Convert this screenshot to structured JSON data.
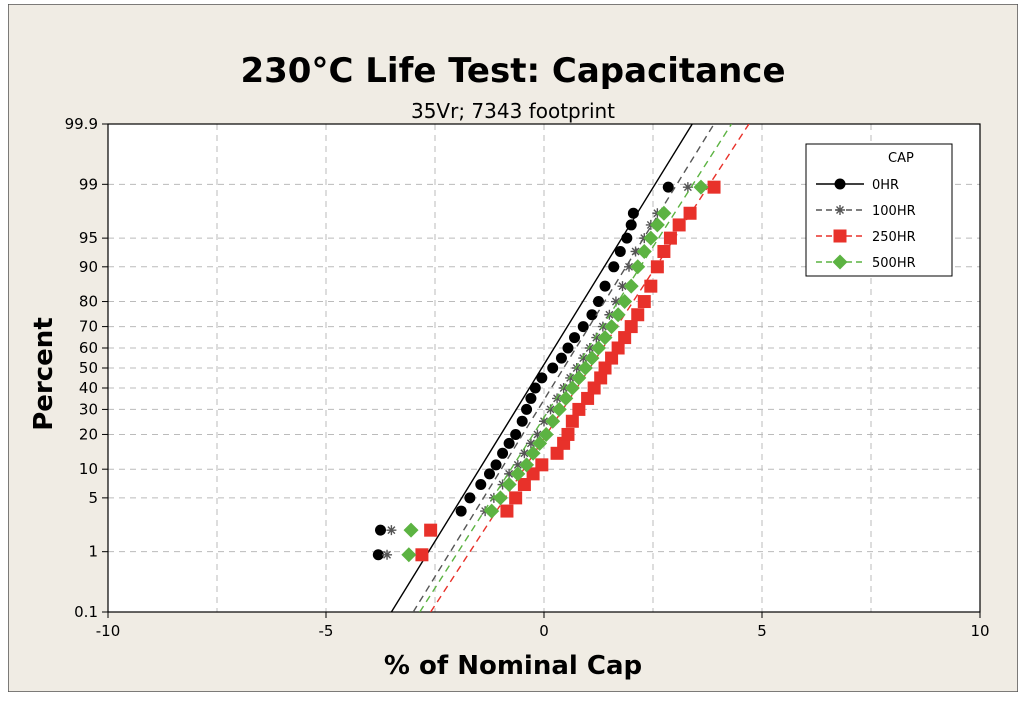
{
  "chart_data": {
    "type": "line",
    "title": "230°C Life Test: Capacitance",
    "subtitle": "35Vr; 7343 footprint",
    "xlabel": "% of Nominal Cap",
    "ylabel": "Percent",
    "xlim": [
      -10,
      10
    ],
    "ylim": [
      0.1,
      99.9
    ],
    "y_scale": "normal-probability",
    "xticks": [
      -10,
      -5,
      0,
      5,
      10
    ],
    "xtick_labels": [
      "-10",
      "-5",
      "0",
      "5",
      "10"
    ],
    "xgrid": [
      -10,
      -7.5,
      -5,
      -2.5,
      0,
      2.5,
      5,
      7.5,
      10
    ],
    "yticks": [
      0.1,
      1,
      5,
      10,
      20,
      30,
      40,
      50,
      60,
      70,
      80,
      90,
      95,
      99,
      99.9
    ],
    "ytick_labels": [
      "0.1",
      "1",
      "5",
      "10",
      "20",
      "30",
      "40",
      "50",
      "60",
      "70",
      "80",
      "90",
      "95",
      "99",
      "99.9"
    ],
    "grid": true,
    "background": "#f0ece4",
    "legend": {
      "title": "CAP",
      "placement": "top-right",
      "entries": [
        "0HR",
        "100HR",
        "250HR",
        "500HR"
      ]
    },
    "series": [
      {
        "name": "0HR",
        "color": "#000000",
        "marker": "circle",
        "line": "solid",
        "fit": [
          [
            -3.5,
            0.1
          ],
          [
            3.4,
            99.9
          ]
        ],
        "points": [
          [
            -3.8,
            0.9
          ],
          [
            -3.75,
            2
          ],
          [
            -1.9,
            3.5
          ],
          [
            -1.7,
            5
          ],
          [
            -1.45,
            7
          ],
          [
            -1.25,
            9
          ],
          [
            -1.1,
            11
          ],
          [
            -0.95,
            14
          ],
          [
            -0.8,
            17
          ],
          [
            -0.65,
            20
          ],
          [
            -0.5,
            25
          ],
          [
            -0.4,
            30
          ],
          [
            -0.3,
            35
          ],
          [
            -0.2,
            40
          ],
          [
            -0.05,
            45
          ],
          [
            0.2,
            50
          ],
          [
            0.4,
            55
          ],
          [
            0.55,
            60
          ],
          [
            0.7,
            65
          ],
          [
            0.9,
            70
          ],
          [
            1.1,
            75
          ],
          [
            1.25,
            80
          ],
          [
            1.4,
            85
          ],
          [
            1.6,
            90
          ],
          [
            1.75,
            93
          ],
          [
            1.9,
            95
          ],
          [
            2.0,
            96.5
          ],
          [
            2.05,
            97.5
          ],
          [
            2.85,
            98.9
          ]
        ]
      },
      {
        "name": "100HR",
        "color": "#555555",
        "marker": "star",
        "line": "dashed",
        "fit": [
          [
            -3.0,
            0.1
          ],
          [
            3.9,
            99.9
          ]
        ],
        "points": [
          [
            -3.6,
            0.9
          ],
          [
            -3.5,
            2
          ],
          [
            -1.35,
            3.5
          ],
          [
            -1.15,
            5
          ],
          [
            -0.95,
            7
          ],
          [
            -0.8,
            9
          ],
          [
            -0.6,
            11
          ],
          [
            -0.45,
            14
          ],
          [
            -0.3,
            17
          ],
          [
            -0.15,
            20
          ],
          [
            0.0,
            25
          ],
          [
            0.15,
            30
          ],
          [
            0.3,
            35
          ],
          [
            0.45,
            40
          ],
          [
            0.6,
            45
          ],
          [
            0.75,
            50
          ],
          [
            0.9,
            55
          ],
          [
            1.05,
            60
          ],
          [
            1.2,
            65
          ],
          [
            1.35,
            70
          ],
          [
            1.5,
            75
          ],
          [
            1.65,
            80
          ],
          [
            1.8,
            85
          ],
          [
            1.95,
            90
          ],
          [
            2.1,
            93
          ],
          [
            2.3,
            95
          ],
          [
            2.45,
            96.5
          ],
          [
            2.6,
            97.5
          ],
          [
            3.3,
            98.9
          ]
        ]
      },
      {
        "name": "250HR",
        "color": "#e8312a",
        "marker": "square",
        "line": "dashed",
        "fit": [
          [
            -2.6,
            0.1
          ],
          [
            4.7,
            99.9
          ]
        ],
        "points": [
          [
            -2.8,
            0.9
          ],
          [
            -2.6,
            2
          ],
          [
            -0.85,
            3.5
          ],
          [
            -0.65,
            5
          ],
          [
            -0.45,
            7
          ],
          [
            -0.25,
            9
          ],
          [
            -0.05,
            11
          ],
          [
            0.3,
            14
          ],
          [
            0.45,
            17
          ],
          [
            0.55,
            20
          ],
          [
            0.65,
            25
          ],
          [
            0.8,
            30
          ],
          [
            1.0,
            35
          ],
          [
            1.15,
            40
          ],
          [
            1.3,
            45
          ],
          [
            1.4,
            50
          ],
          [
            1.55,
            55
          ],
          [
            1.7,
            60
          ],
          [
            1.85,
            65
          ],
          [
            2.0,
            70
          ],
          [
            2.15,
            75
          ],
          [
            2.3,
            80
          ],
          [
            2.45,
            85
          ],
          [
            2.6,
            90
          ],
          [
            2.75,
            93
          ],
          [
            2.9,
            95
          ],
          [
            3.1,
            96.5
          ],
          [
            3.35,
            97.5
          ],
          [
            3.9,
            98.9
          ]
        ]
      },
      {
        "name": "500HR",
        "color": "#5cb342",
        "marker": "diamond",
        "line": "dashed",
        "fit": [
          [
            -2.85,
            0.1
          ],
          [
            4.3,
            99.9
          ]
        ],
        "points": [
          [
            -3.1,
            0.9
          ],
          [
            -3.05,
            2
          ],
          [
            -1.2,
            3.5
          ],
          [
            -1.0,
            5
          ],
          [
            -0.8,
            7
          ],
          [
            -0.6,
            9
          ],
          [
            -0.4,
            11
          ],
          [
            -0.25,
            14
          ],
          [
            -0.1,
            17
          ],
          [
            0.05,
            20
          ],
          [
            0.2,
            25
          ],
          [
            0.35,
            30
          ],
          [
            0.5,
            35
          ],
          [
            0.65,
            40
          ],
          [
            0.8,
            45
          ],
          [
            0.95,
            50
          ],
          [
            1.1,
            55
          ],
          [
            1.25,
            60
          ],
          [
            1.4,
            65
          ],
          [
            1.55,
            70
          ],
          [
            1.7,
            75
          ],
          [
            1.85,
            80
          ],
          [
            2.0,
            85
          ],
          [
            2.15,
            90
          ],
          [
            2.3,
            93
          ],
          [
            2.45,
            95
          ],
          [
            2.6,
            96.5
          ],
          [
            2.75,
            97.5
          ],
          [
            3.6,
            98.9
          ]
        ]
      }
    ]
  }
}
